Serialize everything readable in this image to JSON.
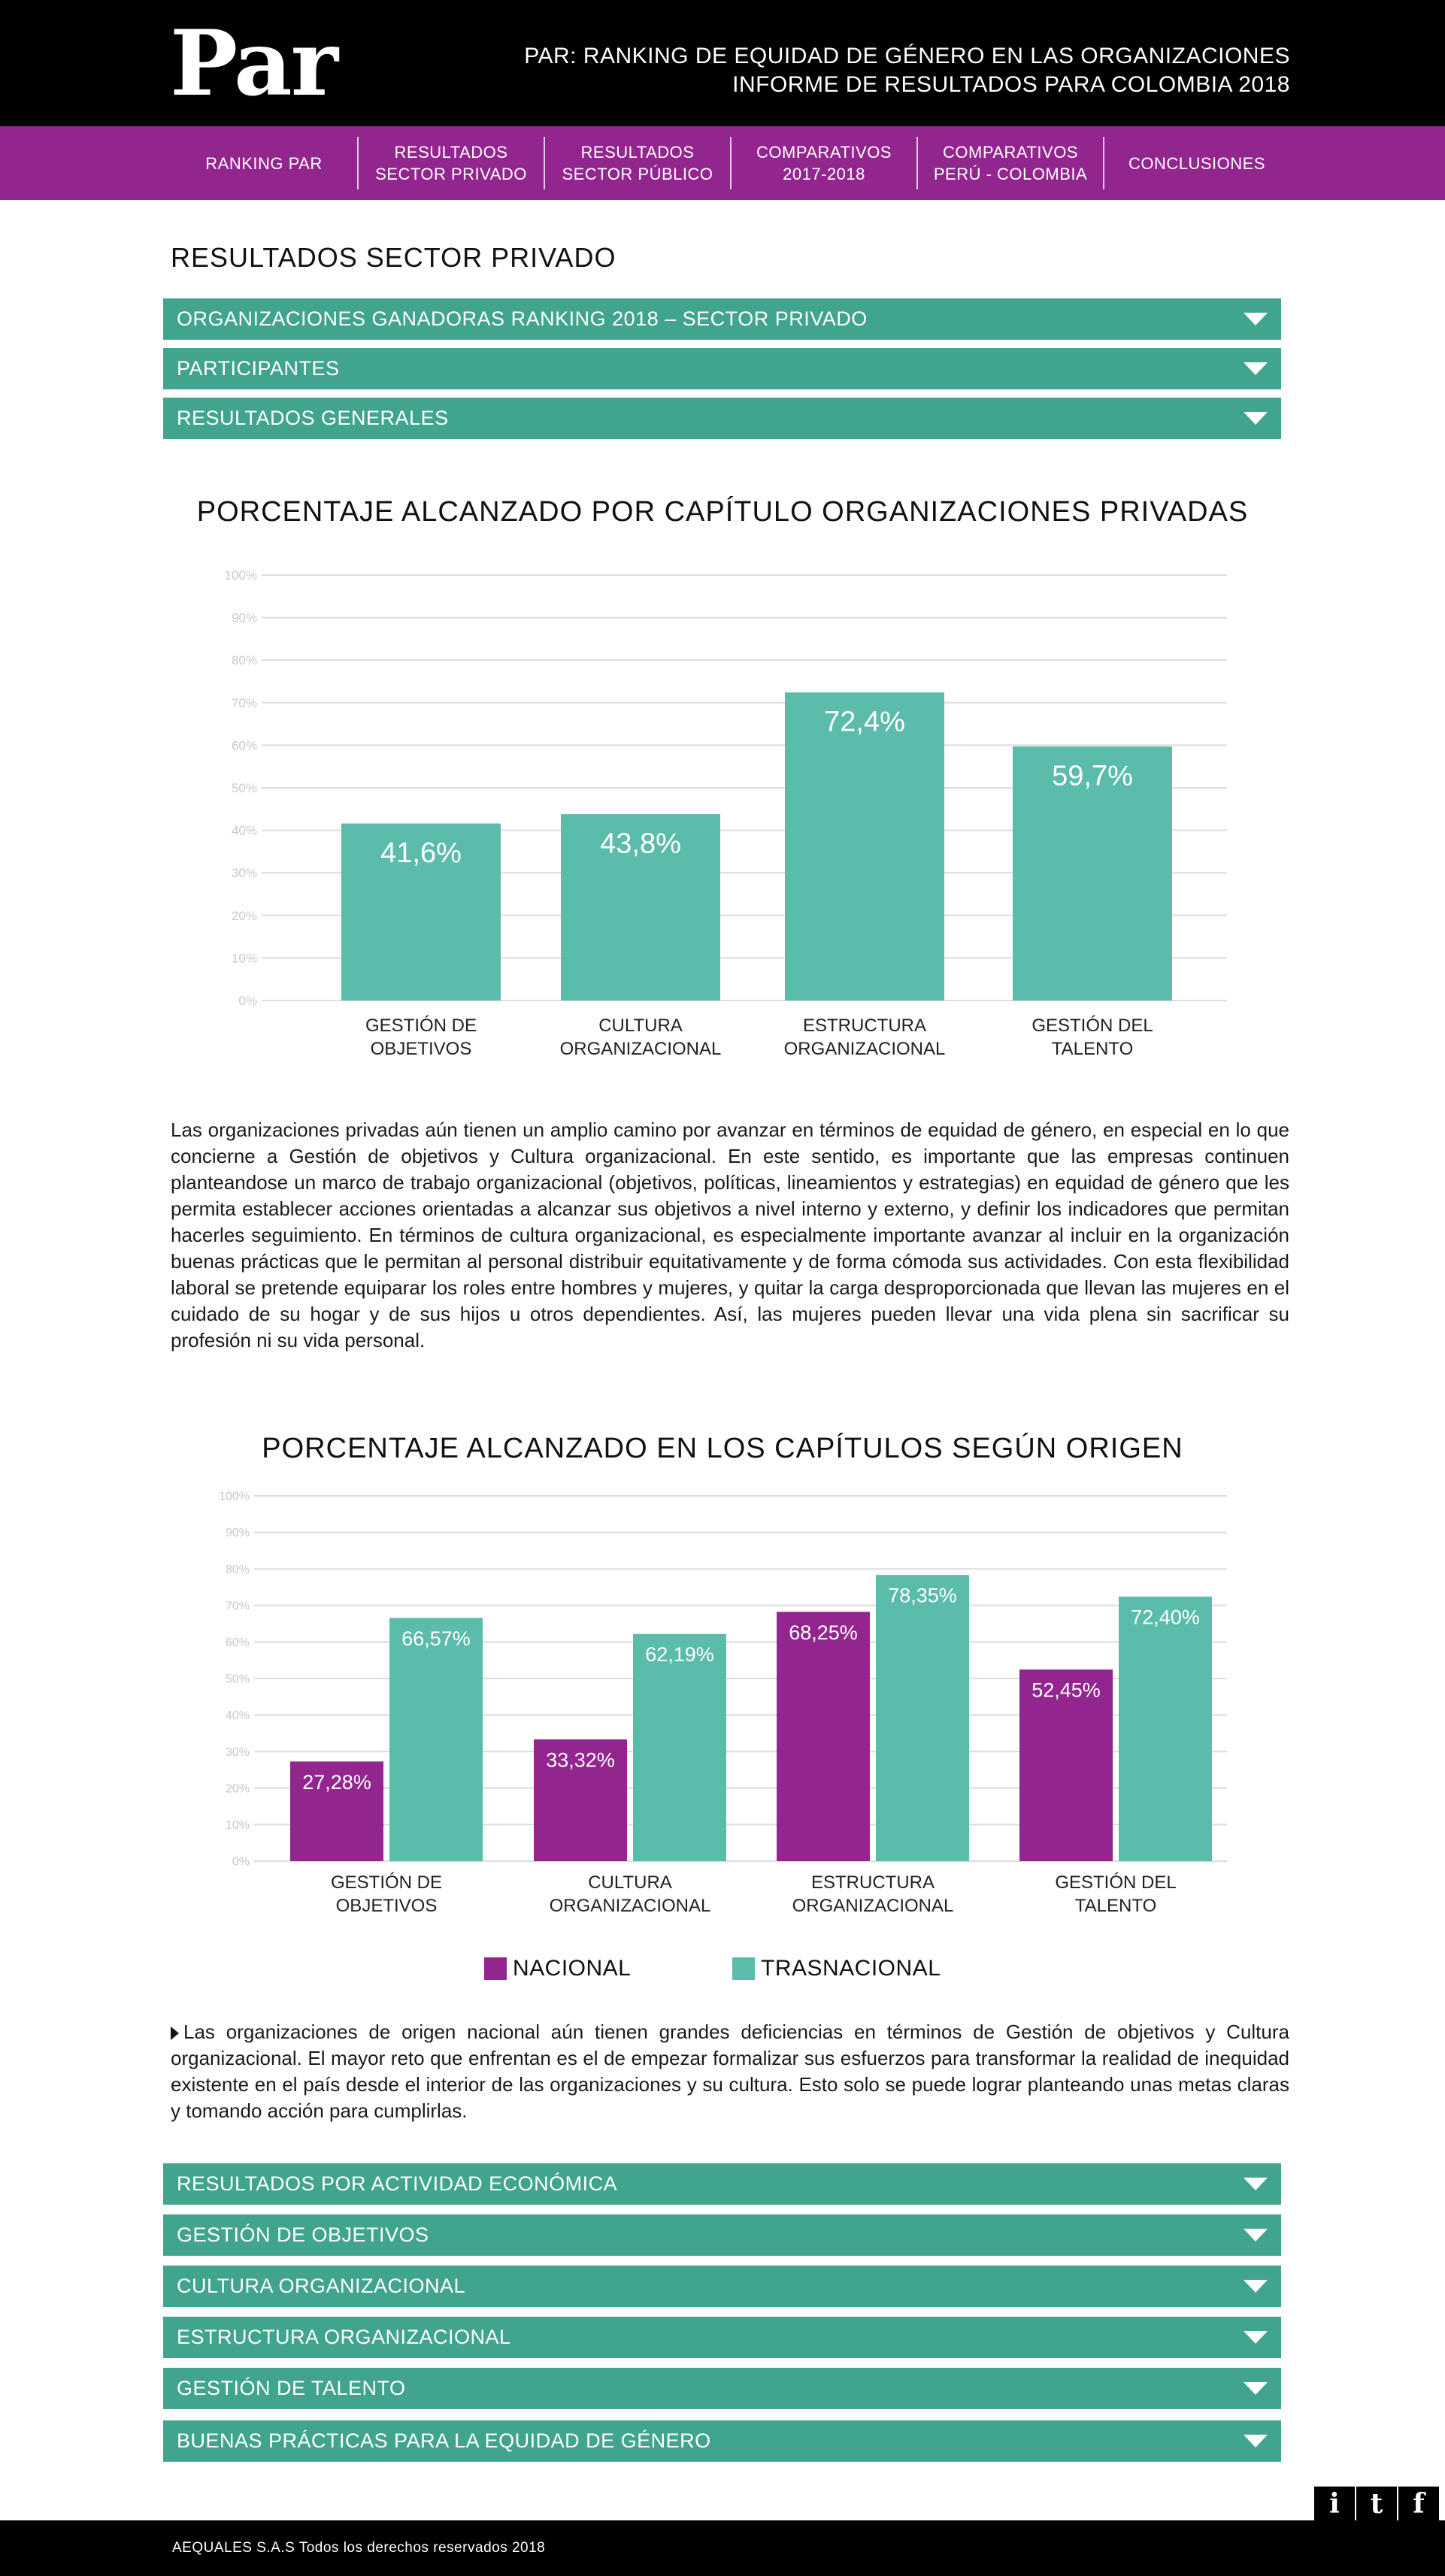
{
  "header": {
    "logo": "Par",
    "title_line1": "PAR: RANKING DE EQUIDAD DE GÉNERO EN LAS ORGANIZACIONES",
    "title_line2": "INFORME DE RESULTADOS PARA COLOMBIA 2018"
  },
  "nav": {
    "items": [
      {
        "line1": "RANKING PAR",
        "line2": ""
      },
      {
        "line1": "RESULTADOS",
        "line2": "SECTOR PRIVADO"
      },
      {
        "line1": "RESULTADOS",
        "line2": "SECTOR PÚBLICO"
      },
      {
        "line1": "COMPARATIVOS",
        "line2": "2017-2018"
      },
      {
        "line1": "COMPARATIVOS",
        "line2": "PERÚ - COLOMBIA"
      },
      {
        "line1": "CONCLUSIONES",
        "line2": ""
      }
    ]
  },
  "section_title": "RESULTADOS SECTOR PRIVADO",
  "accordion_top": [
    "ORGANIZACIONES GANADORAS RANKING 2018 – SECTOR PRIVADO",
    "PARTICIPANTES",
    "RESULTADOS GENERALES"
  ],
  "chart_data": [
    {
      "type": "bar",
      "title": "PORCENTAJE ALCANZADO POR CAPÍTULO ORGANIZACIONES PRIVADAS",
      "categories": [
        [
          "GESTIÓN DE",
          "OBJETIVOS"
        ],
        [
          "CULTURA",
          "ORGANIZACIONAL"
        ],
        [
          "ESTRUCTURA",
          "ORGANIZACIONAL"
        ],
        [
          "GESTIÓN DEL",
          "TALENTO"
        ]
      ],
      "series": [
        {
          "values": [
            41.6,
            43.8,
            72.4,
            59.7
          ],
          "labels": [
            "41,6%",
            "43,8%",
            "72,4%",
            "59,7%"
          ],
          "color": "#5bbcab"
        }
      ],
      "yticks": [
        "0%",
        "10%",
        "20%",
        "30%",
        "40%",
        "50%",
        "60%",
        "70%",
        "80%",
        "90%",
        "100%"
      ],
      "ylim": [
        0,
        100
      ],
      "grid": true
    },
    {
      "type": "bar",
      "title": "PORCENTAJE ALCANZADO EN LOS CAPÍTULOS SEGÚN ORIGEN",
      "categories": [
        [
          "GESTIÓN DE",
          "OBJETIVOS"
        ],
        [
          "CULTURA",
          "ORGANIZACIONAL"
        ],
        [
          "ESTRUCTURA",
          "ORGANIZACIONAL"
        ],
        [
          "GESTIÓN DEL",
          "TALENTO"
        ]
      ],
      "series": [
        {
          "name": "NACIONAL",
          "values": [
            27.28,
            33.32,
            68.25,
            52.45
          ],
          "labels": [
            "27,28%",
            "33,32%",
            "68,25%",
            "52,45%"
          ],
          "color": "#93258f"
        },
        {
          "name": "TRASNACIONAL",
          "values": [
            66.57,
            62.19,
            78.35,
            72.4
          ],
          "labels": [
            "66,57%",
            "62,19%",
            "78,35%",
            "72,40%"
          ],
          "color": "#5bbcab"
        }
      ],
      "yticks": [
        "0%",
        "10%",
        "20%",
        "30%",
        "40%",
        "50%",
        "60%",
        "70%",
        "80%",
        "90%",
        "100%"
      ],
      "ylim": [
        0,
        100
      ],
      "grid": true,
      "legend_position": "bottom"
    }
  ],
  "paragraph1": "Las organizaciones privadas aún tienen un amplio camino por avanzar en términos de equidad de género, en especial en lo que concierne a Gestión de objetivos y Cultura organizacional. En este sentido, es importante que las empresas continuen planteandose un marco de trabajo organizacional (objetivos, políticas, lineamientos y estrategias) en equidad de género que les permita establecer acciones orientadas a alcanzar sus objetivos a nivel interno y externo, y definir los indicadores que permitan hacerles seguimiento. En términos de cultura organizacional, es especialmente importante avanzar al incluir en la organización buenas prácticas que le permitan al personal distribuir equitativamente y de forma cómoda sus actividades. Con esta flexibilidad laboral se pretende equiparar los roles entre hombres y mujeres, y quitar la carga desproporcionada que llevan las mujeres en el cuidado de su hogar y de sus hijos u otros dependientes. Así, las mujeres pueden llevar una vida plena sin sacrificar su profesión ni su vida personal.",
  "paragraph2": "Las organizaciones de origen nacional aún tienen grandes deficiencias en términos de Gestión de objetivos y Cultura organizacional. El mayor reto que enfrentan es el de empezar formalizar sus esfuerzos para transformar la realidad de inequidad existente en el país desde el interior de las organizaciones y su cultura. Esto solo se puede lograr planteando unas metas claras y tomando acción para cumplirlas.",
  "accordion_bottom": [
    "RESULTADOS POR ACTIVIDAD ECONÓMICA",
    "GESTIÓN DE OBJETIVOS",
    "CULTURA ORGANIZACIONAL",
    "ESTRUCTURA ORGANIZACIONAL",
    "GESTIÓN DE TALENTO",
    "BUENAS PRÁCTICAS PARA LA EQUIDAD DE GÉNERO"
  ],
  "social": {
    "icons": [
      "info-icon",
      "twitter-icon",
      "facebook-icon"
    ],
    "glyphs": [
      "i",
      "t",
      "f"
    ]
  },
  "footer": {
    "text": "AEQUALES  S.A.S Todos los derechos reservados 2018"
  },
  "colors": {
    "purple": "#93258f",
    "teal": "#5bbcab",
    "accordion": "#41a48f"
  }
}
